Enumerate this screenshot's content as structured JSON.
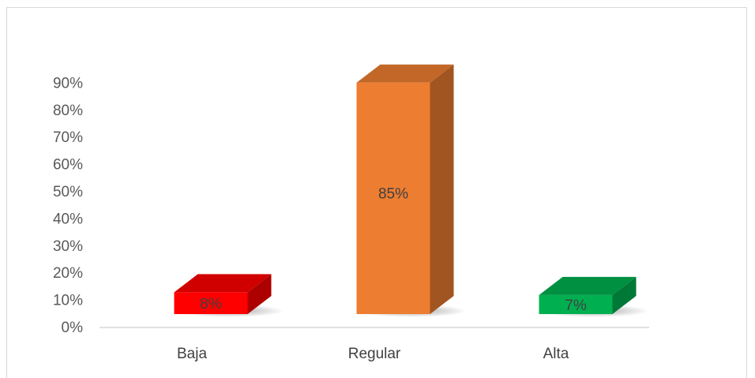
{
  "chart_data": {
    "type": "bar",
    "style": "3d-column",
    "categories": [
      "Baja",
      "Regular",
      "Alta"
    ],
    "values": [
      8,
      85,
      7
    ],
    "data_labels": [
      "8%",
      "85%",
      "7%"
    ],
    "colors": [
      "#ff0000",
      "#ed7d31",
      "#00b050"
    ],
    "y_ticks": [
      "0%",
      "10%",
      "20%",
      "30%",
      "40%",
      "50%",
      "60%",
      "70%",
      "80%",
      "90%"
    ],
    "ylim": [
      0,
      90
    ],
    "grid": false,
    "legend": "none"
  }
}
